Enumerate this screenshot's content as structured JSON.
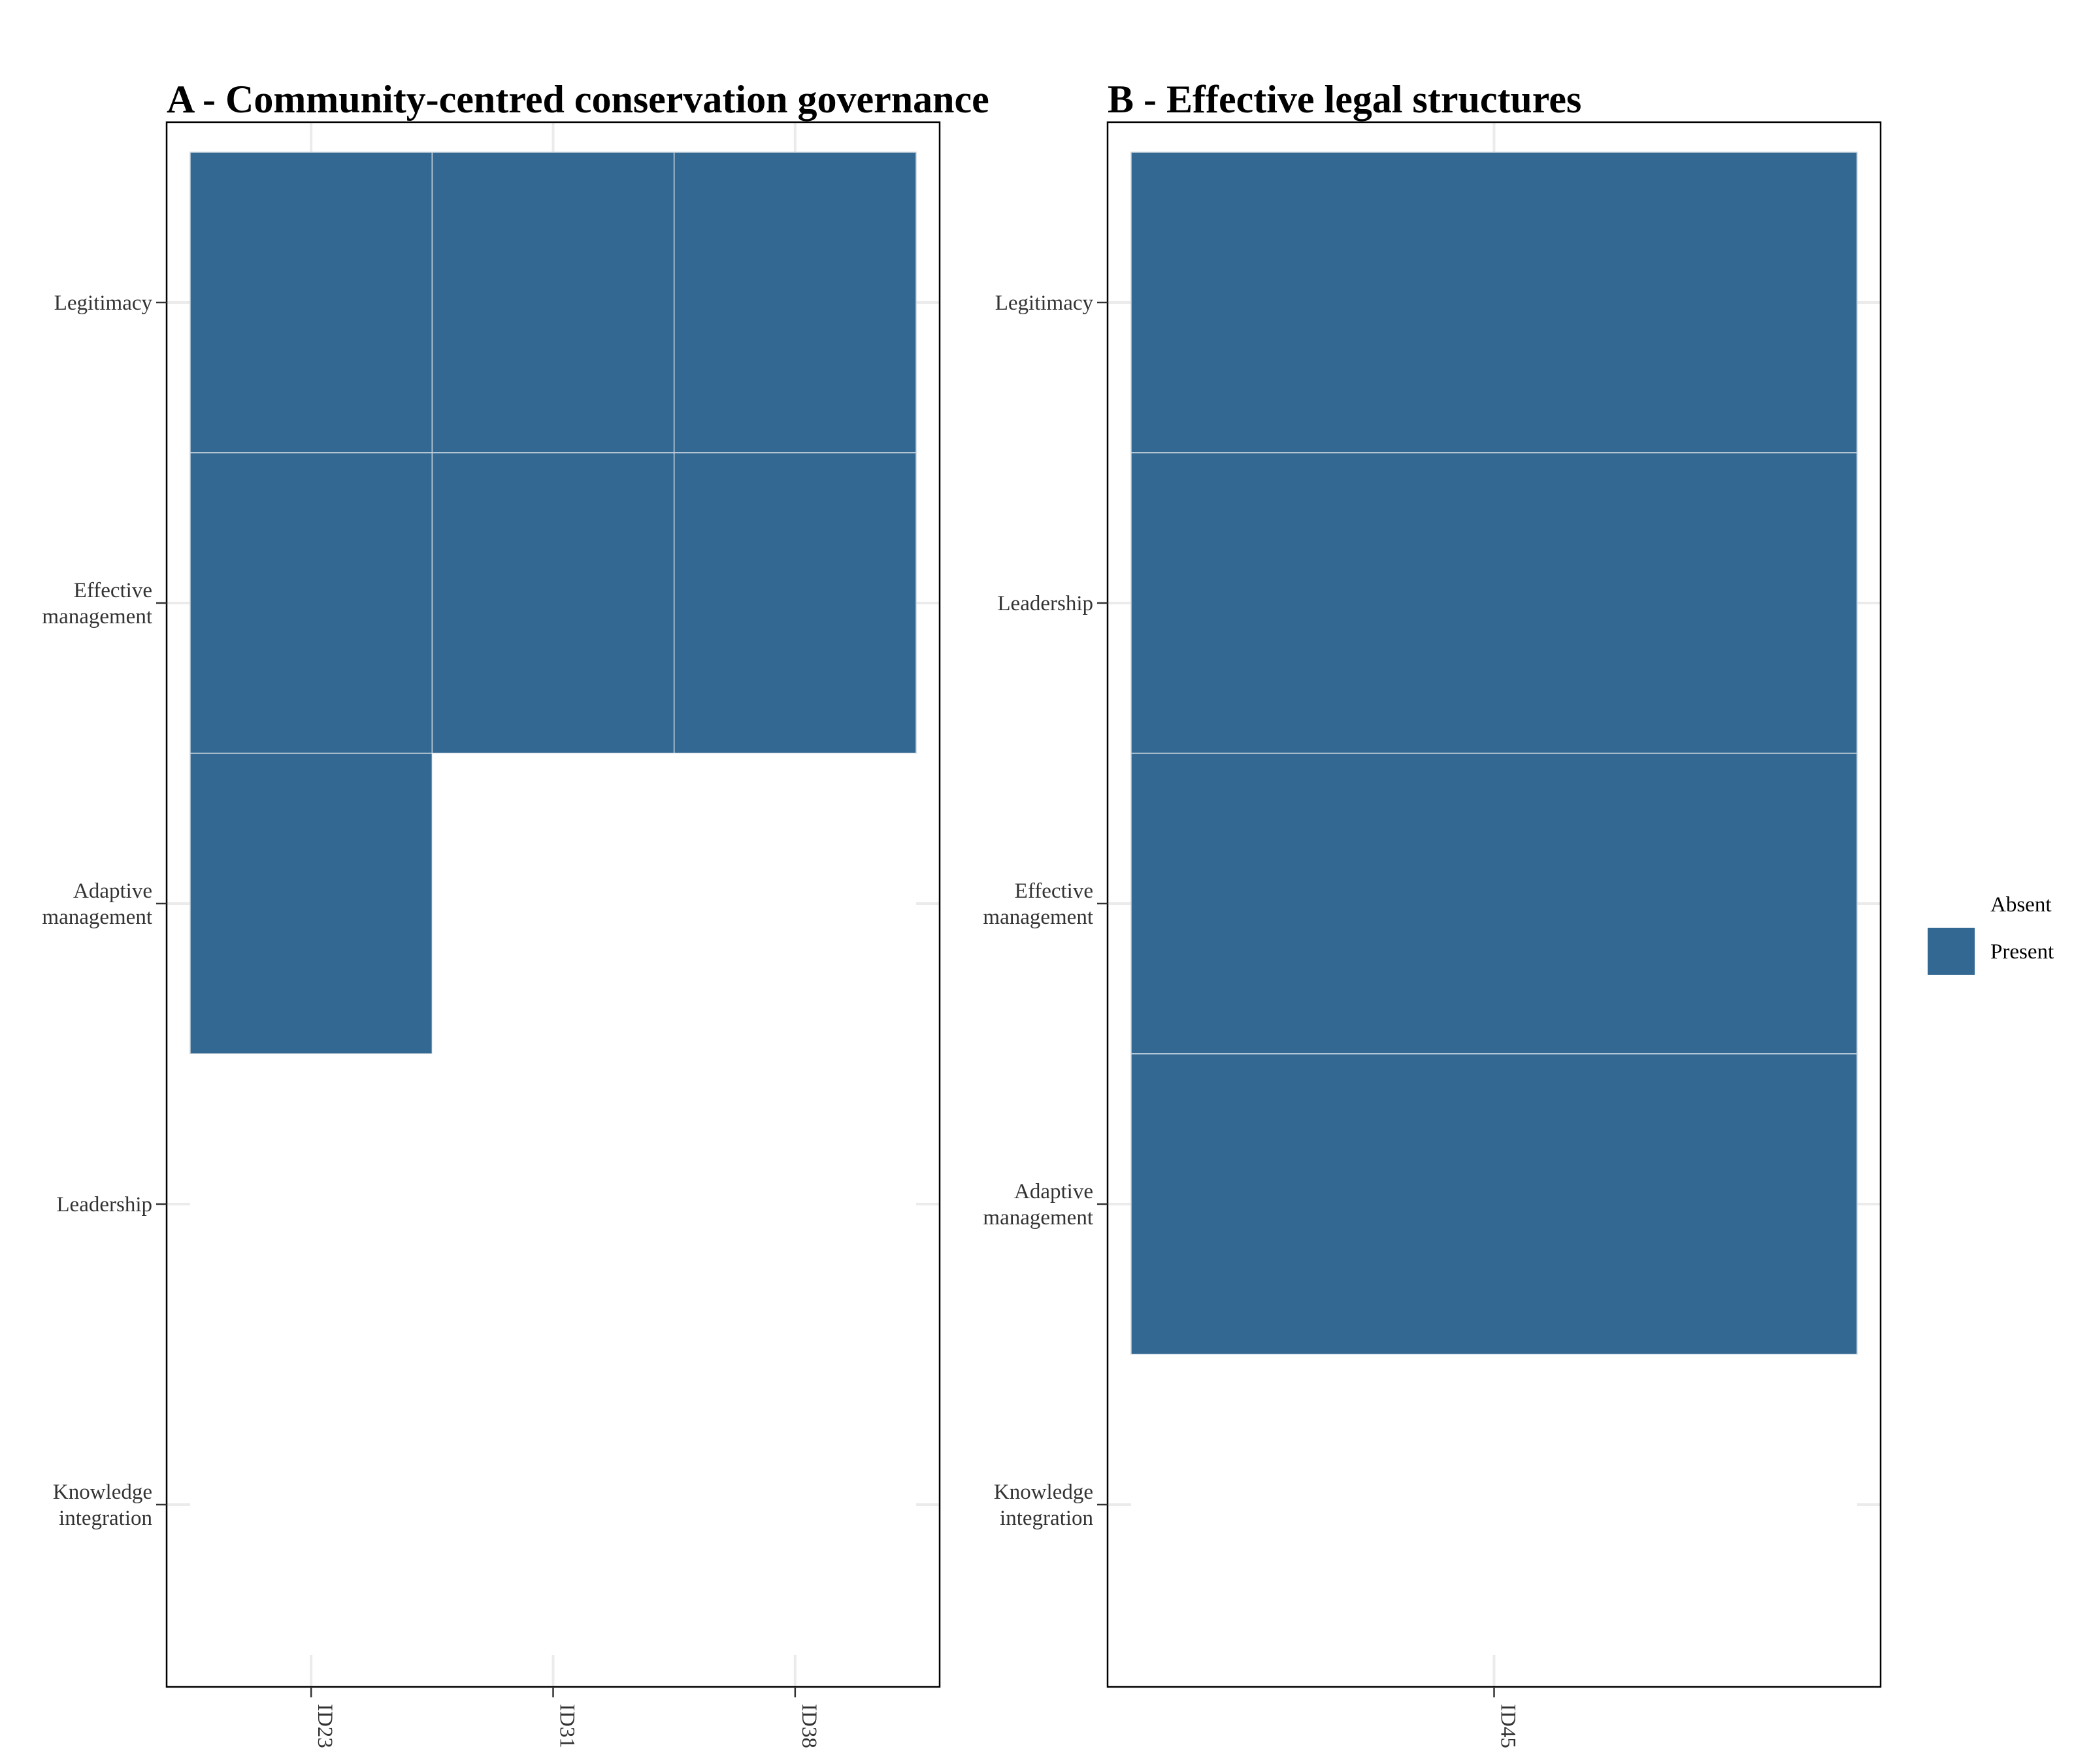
{
  "chart_data": [
    {
      "type": "heatmap",
      "title": "A - Community-centred conservation governance",
      "xlabel": "",
      "ylabel": "",
      "categories": [
        "ID23",
        "ID31",
        "ID38"
      ],
      "rows": [
        "Legitimacy",
        "Effective\nmanagement",
        "Adaptive\nmanagement",
        "Leadership",
        "Knowledge\nintegration"
      ],
      "cells": [
        [
          1,
          1,
          1
        ],
        [
          1,
          1,
          1
        ],
        [
          1,
          0,
          0
        ],
        [
          0,
          0,
          0
        ],
        [
          0,
          0,
          0
        ]
      ],
      "grid": true
    },
    {
      "type": "heatmap",
      "title": "B - Effective legal structures",
      "xlabel": "",
      "ylabel": "",
      "categories": [
        "ID45"
      ],
      "rows": [
        "Legitimacy",
        "Leadership",
        "Effective\nmanagement",
        "Adaptive\nmanagement",
        "Knowledge\nintegration"
      ],
      "cells": [
        [
          1
        ],
        [
          1
        ],
        [
          1
        ],
        [
          1
        ],
        [
          0
        ]
      ],
      "grid": true
    }
  ],
  "legend": {
    "placement": "right",
    "entries": [
      {
        "label": "Absent",
        "color": "#ffffff"
      },
      {
        "label": "Present",
        "color": "#326892"
      }
    ]
  },
  "colors": {
    "present": "#326892",
    "absent": "#ffffff",
    "grid": "#ebebeb",
    "frame": "#000000"
  }
}
